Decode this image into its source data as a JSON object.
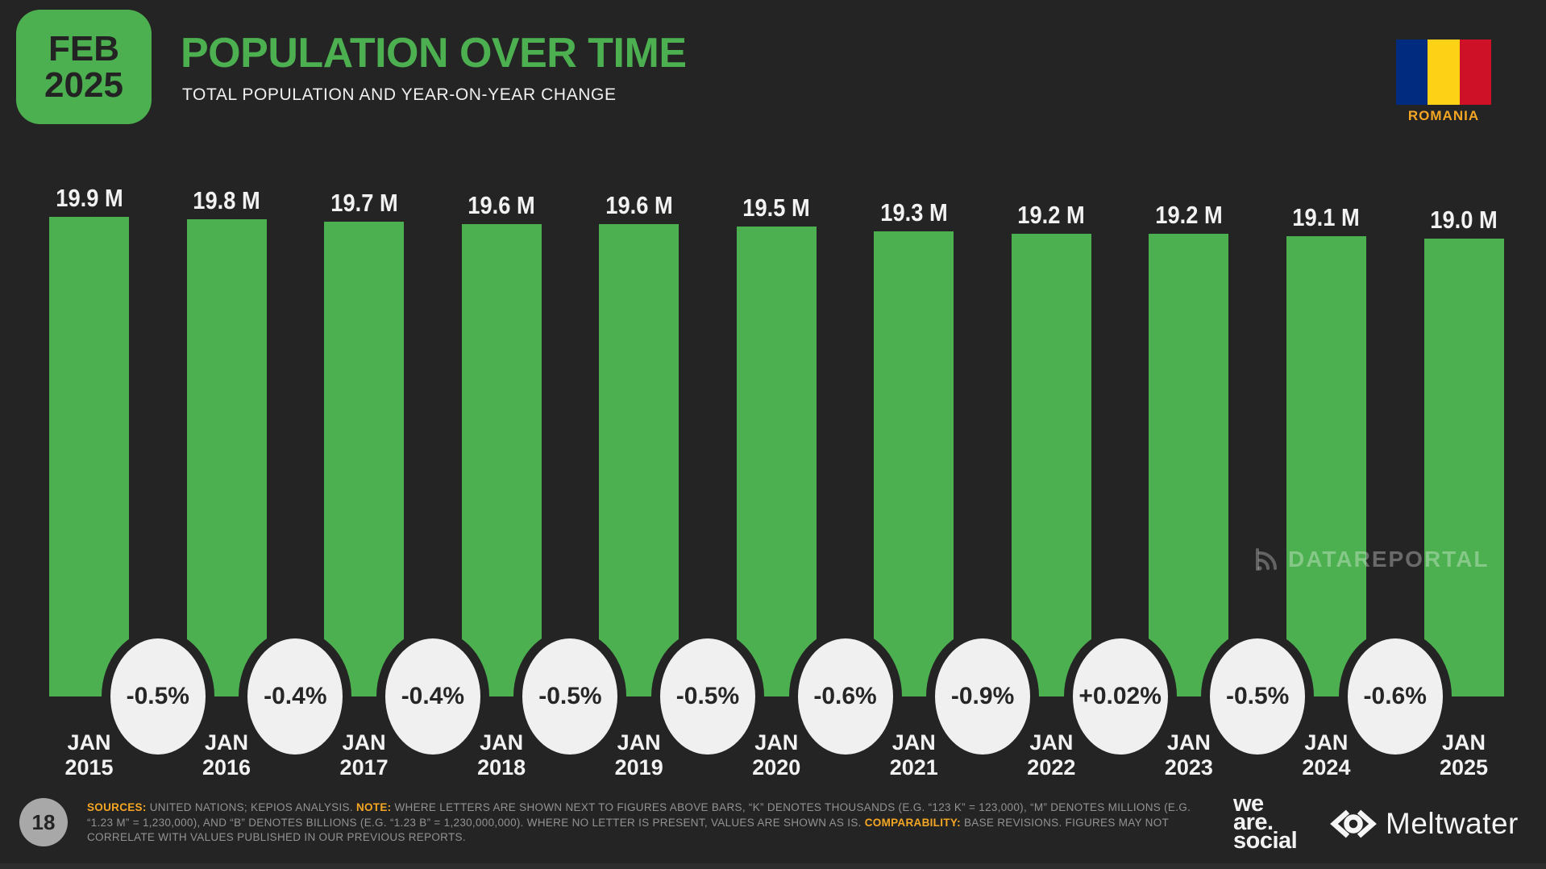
{
  "theme": {
    "bg": "#242424",
    "green": "#4caf50",
    "orange": "#f5a623",
    "circle_fill": "#f0f0f0",
    "text_light": "#f2f2f2",
    "footer_gray": "#929292"
  },
  "header": {
    "badge": {
      "month": "FEB",
      "year": "2025"
    },
    "title": "POPULATION OVER TIME",
    "subtitle": "TOTAL POPULATION AND YEAR-ON-YEAR CHANGE",
    "country": "ROMANIA",
    "flag_colors": [
      "#002B7F",
      "#FCD116",
      "#CE1126"
    ]
  },
  "watermark": {
    "text": "DATAREPORTAL"
  },
  "chart_data": {
    "type": "bar",
    "title": "POPULATION OVER TIME",
    "subtitle": "TOTAL POPULATION AND YEAR-ON-YEAR CHANGE",
    "unit": "millions",
    "bar_color": "#4caf50",
    "grid": false,
    "ylim": [
      0,
      19.9
    ],
    "categories": [
      "JAN 2015",
      "JAN 2016",
      "JAN 2017",
      "JAN 2018",
      "JAN 2019",
      "JAN 2020",
      "JAN 2021",
      "JAN 2022",
      "JAN 2023",
      "JAN 2024",
      "JAN 2025"
    ],
    "values": [
      19.9,
      19.8,
      19.7,
      19.6,
      19.6,
      19.5,
      19.3,
      19.2,
      19.2,
      19.1,
      19.0
    ],
    "value_labels": [
      "19.9 M",
      "19.8 M",
      "19.7 M",
      "19.6 M",
      "19.6 M",
      "19.5 M",
      "19.3 M",
      "19.2 M",
      "19.2 M",
      "19.1 M",
      "19.0 M"
    ],
    "yoy_change_labels": [
      "-0.5%",
      "-0.4%",
      "-0.4%",
      "-0.5%",
      "-0.5%",
      "-0.6%",
      "-0.9%",
      "+0.02%",
      "-0.5%",
      "-0.6%"
    ]
  },
  "footer": {
    "page_number": "18",
    "note_segments": [
      {
        "text": "SOURCES:",
        "highlight": true
      },
      {
        "text": " UNITED NATIONS; KEPIOS ANALYSIS. ",
        "highlight": false
      },
      {
        "text": "NOTE:",
        "highlight": true
      },
      {
        "text": " WHERE LETTERS ARE SHOWN NEXT TO FIGURES ABOVE BARS, “K” DENOTES THOUSANDS (E.G. “123 K” = 123,000), “M” DENOTES MILLIONS (E.G. “1.23 M” = 1,230,000), AND “B” DENOTES BILLIONS (E.G. “1.23 B” = 1,230,000,000). WHERE NO LETTER IS PRESENT, VALUES ARE SHOWN AS IS. ",
        "highlight": false
      },
      {
        "text": "COMPARABILITY:",
        "highlight": true
      },
      {
        "text": " BASE REVISIONS. FIGURES MAY NOT CORRELATE WITH VALUES PUBLISHED IN OUR PREVIOUS REPORTS.",
        "highlight": false
      }
    ],
    "logos": {
      "we_are_social": [
        "we",
        "are.",
        "social"
      ],
      "meltwater": "Meltwater"
    }
  }
}
